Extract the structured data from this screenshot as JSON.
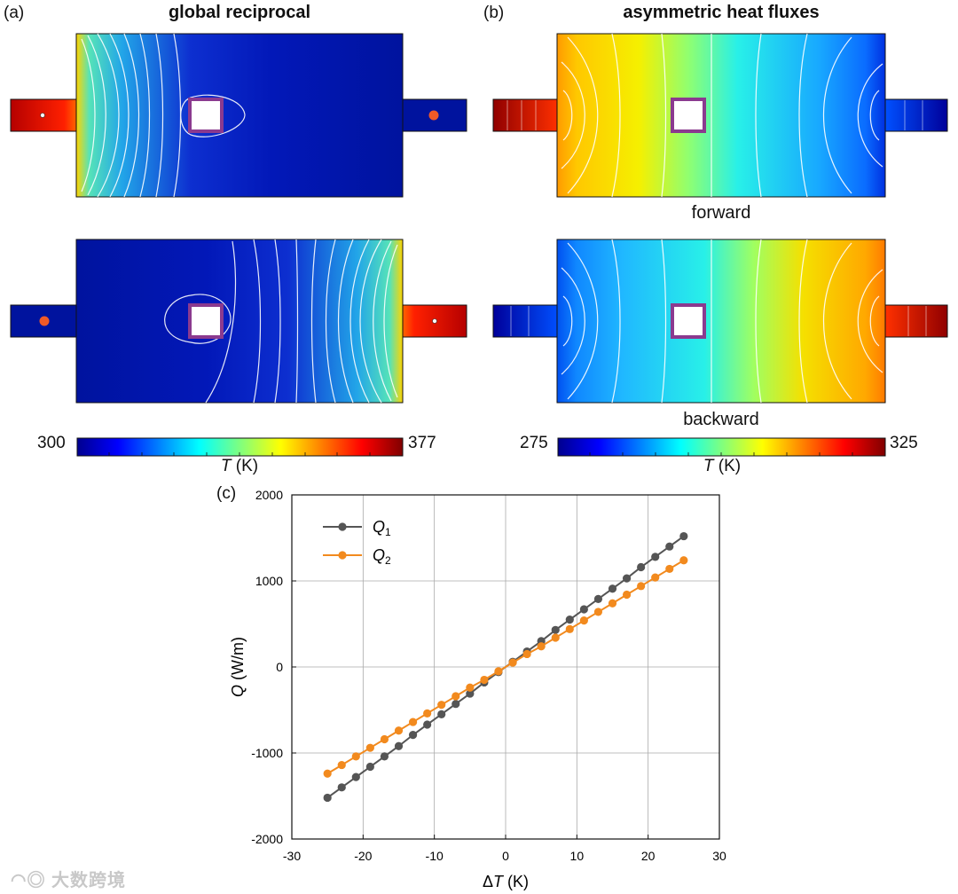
{
  "panel_a": {
    "label": "(a)",
    "title": "global reciprocal",
    "colorbar": {
      "min": "300",
      "max": "377",
      "axis_var": "T",
      "axis_unit": "(K)"
    }
  },
  "panel_b": {
    "label": "(b)",
    "title": "asymmetric heat fluxes",
    "caption_top": "forward",
    "caption_bottom": "backward",
    "colorbar": {
      "min": "275",
      "max": "325",
      "axis_var": "T",
      "axis_unit": "(K)"
    }
  },
  "panel_c": {
    "label": "(c)"
  },
  "colors": {
    "q1": "#555555",
    "q2": "#f28a1e",
    "obstacle": "#8b3a8f",
    "source_dot": "#f05a28"
  },
  "chart_data": {
    "type": "line",
    "title": "",
    "xlabel_prefix": "Δ",
    "xlabel_var": "T",
    "xlabel_unit": "(K)",
    "ylabel_var": "Q",
    "ylabel_unit": "(W/m)",
    "xlim": [
      -30,
      30
    ],
    "ylim": [
      -2000,
      2000
    ],
    "xticks": [
      -30,
      -20,
      -10,
      0,
      10,
      20,
      30
    ],
    "yticks": [
      -2000,
      -1000,
      0,
      1000,
      2000
    ],
    "grid": true,
    "legend": "top-left",
    "x": [
      -25,
      -23,
      -21,
      -19,
      -17,
      -15,
      -13,
      -11,
      -9,
      -7,
      -5,
      -3,
      -1,
      1,
      3,
      5,
      7,
      9,
      11,
      13,
      15,
      17,
      19,
      21,
      23,
      25
    ],
    "series": [
      {
        "name": "Q",
        "sub": "1",
        "values": [
          -1520,
          -1400,
          -1280,
          -1160,
          -1040,
          -920,
          -790,
          -670,
          -550,
          -430,
          -310,
          -180,
          -60,
          60,
          180,
          300,
          430,
          550,
          670,
          790,
          910,
          1030,
          1160,
          1280,
          1400,
          1520
        ]
      },
      {
        "name": "Q",
        "sub": "2",
        "values": [
          -1240,
          -1140,
          -1040,
          -940,
          -840,
          -740,
          -640,
          -540,
          -440,
          -340,
          -240,
          -150,
          -50,
          50,
          150,
          240,
          340,
          440,
          540,
          640,
          740,
          840,
          940,
          1040,
          1140,
          1240
        ]
      }
    ]
  },
  "watermark": "大数跨境"
}
